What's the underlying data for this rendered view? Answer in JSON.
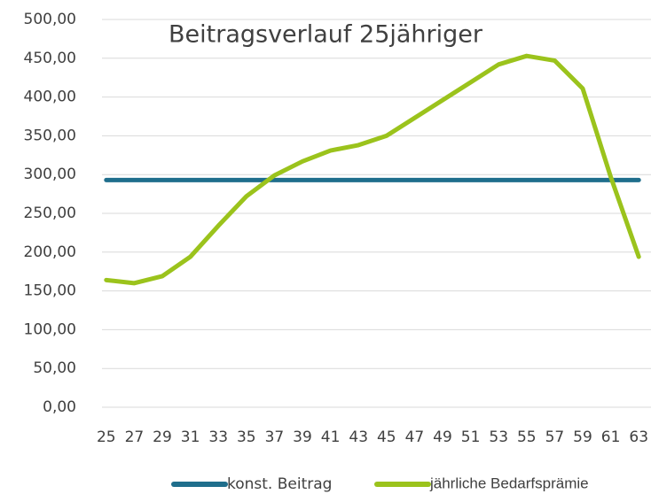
{
  "chart_data": {
    "type": "line",
    "title": "Beitragsverlauf 25jähriger",
    "categories": [
      "25",
      "27",
      "29",
      "31",
      "33",
      "35",
      "37",
      "39",
      "41",
      "43",
      "45",
      "47",
      "49",
      "51",
      "53",
      "55",
      "57",
      "59",
      "61",
      "63"
    ],
    "series": [
      {
        "name": "konst. Beitrag",
        "color": "#1f6e8c",
        "values": [
          293,
          293,
          293,
          293,
          293,
          293,
          293,
          293,
          293,
          293,
          293,
          293,
          293,
          293,
          293,
          293,
          293,
          293,
          293,
          293
        ]
      },
      {
        "name": "jährliche Bedarfsprämie",
        "color": "#9bc31c",
        "values": [
          164,
          160,
          169,
          194,
          234,
          272,
          299,
          317,
          331,
          338,
          350,
          373,
          396,
          419,
          442,
          453,
          447,
          411,
          297,
          194
        ]
      }
    ],
    "ylim": [
      0,
      500
    ],
    "yticks": [
      {
        "value": 0,
        "label": "0,00"
      },
      {
        "value": 50,
        "label": "50,00"
      },
      {
        "value": 100,
        "label": "100,00"
      },
      {
        "value": 150,
        "label": "150,00"
      },
      {
        "value": 200,
        "label": "200,00"
      },
      {
        "value": 250,
        "label": "250,00"
      },
      {
        "value": 300,
        "label": "300,00"
      },
      {
        "value": 350,
        "label": "350,00"
      },
      {
        "value": 400,
        "label": "400,00"
      },
      {
        "value": 450,
        "label": "450,00"
      },
      {
        "value": 500,
        "label": "500,00"
      }
    ],
    "grid": true
  }
}
